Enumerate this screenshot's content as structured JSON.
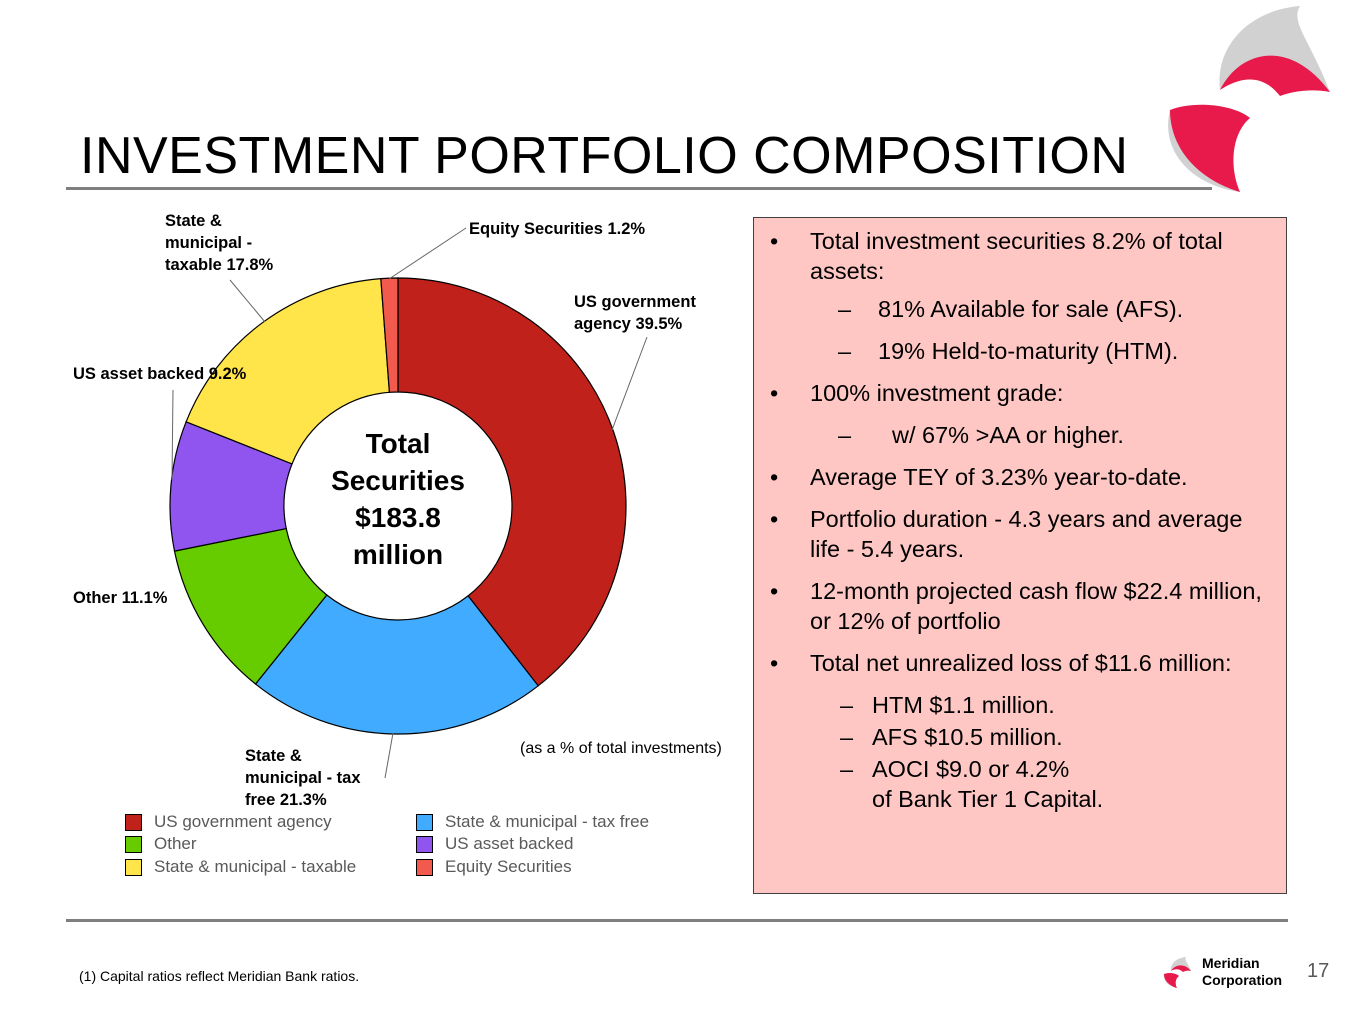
{
  "title": "INVESTMENT PORTFOLIO COMPOSITION",
  "colors": {
    "us_gov": "#c0211a",
    "state_tax_free": "#41abff",
    "other": "#66cc00",
    "us_asset_backed": "#8f55ee",
    "state_taxable": "#ffe44a",
    "equity": "#f25a4e",
    "box_bg": "#ffc7c4",
    "brand": "#e8194b"
  },
  "chart_data": {
    "type": "donut",
    "center_label": [
      "Total",
      "Securities",
      "$183.8",
      "million"
    ],
    "unit_note": "(as a % of total investments)",
    "slices": [
      {
        "name": "US government agency",
        "value": 39.5,
        "label_lines": [
          "US government",
          "agency 39.5%"
        ],
        "color": "#c0211a"
      },
      {
        "name": "State & municipal - tax free",
        "value": 21.3,
        "label_lines": [
          "State &",
          "municipal - tax",
          "free 21.3%"
        ],
        "color": "#41abff"
      },
      {
        "name": "Other",
        "value": 11.1,
        "label_lines": [
          "Other 11.1%"
        ],
        "color": "#66cc00"
      },
      {
        "name": "US asset backed",
        "value": 9.2,
        "label_lines": [
          "US asset backed 9.2%"
        ],
        "color": "#8f55ee"
      },
      {
        "name": "State & municipal - taxable",
        "value": 17.8,
        "label_lines": [
          "State &",
          "municipal -",
          "taxable 17.8%"
        ],
        "color": "#ffe44a"
      },
      {
        "name": "Equity Securities",
        "value": 1.2,
        "label_lines": [
          "Equity Securities 1.2%"
        ],
        "color": "#f25a4e"
      }
    ],
    "legend": [
      {
        "label": "US government agency",
        "color": "#c0211a"
      },
      {
        "label": "State & municipal - tax free",
        "color": "#41abff"
      },
      {
        "label": "Other",
        "color": "#66cc00"
      },
      {
        "label": "US asset backed",
        "color": "#8f55ee"
      },
      {
        "label": "State & municipal - taxable",
        "color": "#ffe44a"
      },
      {
        "label": "Equity Securities",
        "color": "#f25a4e"
      }
    ]
  },
  "info": {
    "b1": "Total investment securities 8.2% of total assets:",
    "b1_sub1": "81% Available for sale (AFS).",
    "b1_sub2": "19% Held-to-maturity (HTM).",
    "b2": "100% investment grade:",
    "b2_sub1": "w/ 67% >AA or higher.",
    "b3": "Average TEY of 3.23% year-to-date.",
    "b4": "Portfolio duration - 4.3 years and average life - 5.4 years.",
    "b5": "12-month projected cash flow $22.4 million, or 12% of portfolio",
    "b6": "Total net unrealized loss of $11.6 million:",
    "b6_sub1": "HTM $1.1 million.",
    "b6_sub2": "AFS $10.5 million.",
    "b6_sub3_line1": "AOCI $9.0 or 4.2%",
    "b6_sub3_line2": "of Bank Tier 1 Capital.",
    "bullet_char": "•",
    "dash_char": "–"
  },
  "footnote": "(1) Capital ratios reflect Meridian Bank ratios.",
  "brand": {
    "line1": "Meridian",
    "line2": "Corporation"
  },
  "page_number": "17"
}
